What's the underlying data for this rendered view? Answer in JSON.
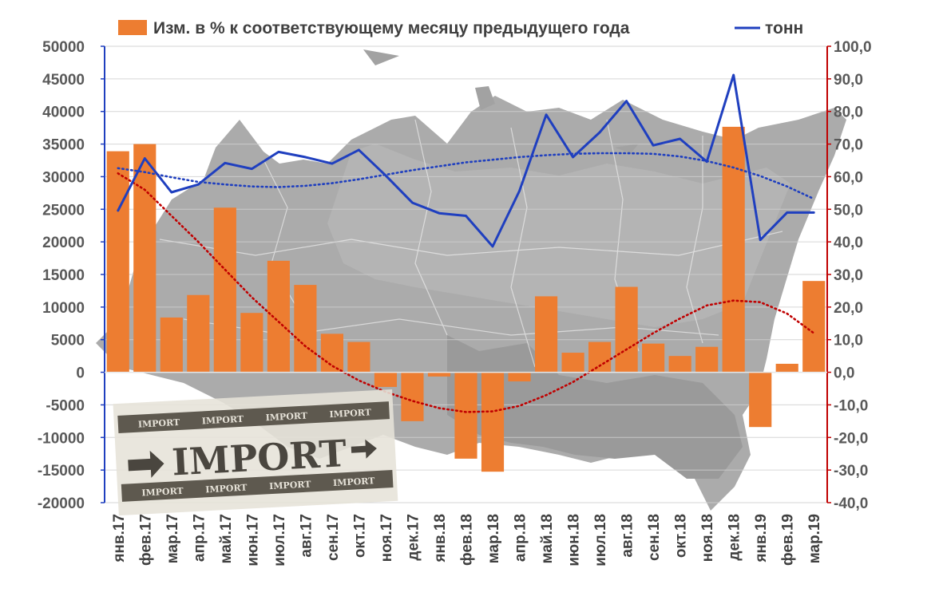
{
  "chart_data": {
    "type": "bar+line",
    "categories": [
      "янв.17",
      "фев.17",
      "мар.17",
      "апр.17",
      "май.17",
      "июн.17",
      "июл.17",
      "авг.17",
      "сен.17",
      "окт.17",
      "ноя.17",
      "дек.17",
      "янв.18",
      "фев.18",
      "мар.18",
      "апр.18",
      "май.18",
      "июн.18",
      "июл.18",
      "авг.18",
      "сен.18",
      "окт.18",
      "ноя.18",
      "дек.18",
      "янв.19",
      "фев.19",
      "мар.19"
    ],
    "series": [
      {
        "name": "Изм. в % к соответствующему месяцу предыдущего года",
        "type": "bar",
        "axis": "right",
        "color": "#ed7d31",
        "values": [
          67.8,
          70.0,
          16.8,
          23.7,
          50.5,
          18.2,
          34.2,
          26.8,
          11.8,
          9.3,
          -4.5,
          -15.0,
          -1.3,
          -26.5,
          -30.5,
          -2.8,
          23.3,
          6.0,
          9.3,
          26.2,
          8.8,
          5.0,
          7.8,
          75.3,
          -16.8,
          2.6,
          28.0
        ]
      },
      {
        "name": "тонн",
        "type": "line",
        "axis": "left",
        "color": "#1f3fbf",
        "values": [
          24800,
          32800,
          27600,
          28800,
          32100,
          31200,
          33800,
          33000,
          32000,
          34100,
          30200,
          26000,
          24400,
          24000,
          19300,
          27800,
          39500,
          33000,
          36800,
          41600,
          34800,
          35800,
          32300,
          45600,
          20300,
          24500,
          24500
        ]
      }
    ],
    "trendlines": [
      {
        "of": "тонн",
        "kind": "polynomial",
        "axis": "left",
        "color": "#1f3fbf",
        "style": "dotted",
        "values": [
          31300,
          30700,
          29900,
          29200,
          28800,
          28500,
          28400,
          28600,
          29000,
          29600,
          30300,
          31000,
          31600,
          32200,
          32600,
          33000,
          33300,
          33500,
          33600,
          33600,
          33500,
          33100,
          32400,
          31400,
          30100,
          28500,
          26600
        ]
      },
      {
        "of": "Изм. в % к соответствующему месяцу предыдущего года",
        "kind": "polynomial",
        "axis": "right",
        "color": "#c00000",
        "style": "dotted",
        "values": [
          61.0,
          56.0,
          48.0,
          40.0,
          31.5,
          23.0,
          15.5,
          8.0,
          2.0,
          -2.5,
          -6.0,
          -8.8,
          -11.0,
          -12.2,
          -12.0,
          -10.3,
          -7.0,
          -3.0,
          2.0,
          7.0,
          12.0,
          16.5,
          20.5,
          22.0,
          21.5,
          18.0,
          12.0
        ]
      }
    ],
    "left_axis": {
      "min": -20000,
      "max": 50000,
      "step": 5000,
      "color": "#1f3fbf",
      "tick_labels": [
        "-20000",
        "-15000",
        "-10000",
        "-5000",
        "0",
        "5000",
        "10000",
        "15000",
        "20000",
        "25000",
        "30000",
        "35000",
        "40000",
        "45000",
        "50000"
      ]
    },
    "right_axis": {
      "min": -40,
      "max": 100,
      "step": 10,
      "color": "#c00000",
      "tick_labels": [
        "-40,0",
        "-30,0",
        "-20,0",
        "-10,0",
        "0,0",
        "10,0",
        "20,0",
        "30,0",
        "40,0",
        "50,0",
        "60,0",
        "70,0",
        "80,0",
        "90,0",
        "100,0"
      ]
    },
    "gridlines": true,
    "legend": {
      "position": "top",
      "items": [
        "Изм. в % к соответствующему месяцу предыдущего года",
        "тонн"
      ]
    },
    "background": "map-of-russia"
  },
  "stamp": {
    "band_word": "IMPORT",
    "main_word": "IMPORT"
  }
}
